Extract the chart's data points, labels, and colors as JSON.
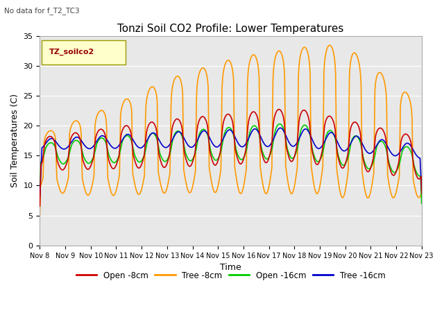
{
  "title": "Tonzi Soil CO2 Profile: Lower Temperatures",
  "subtitle": "No data for f_T2_TC3",
  "xlabel": "Time",
  "ylabel": "Soil Temperatures (C)",
  "legend_label": "TZ_soilco2",
  "series_labels": [
    "Open -8cm",
    "Tree -8cm",
    "Open -16cm",
    "Tree -16cm"
  ],
  "series_colors": [
    "#cc0000",
    "#ff9900",
    "#00cc00",
    "#0000cc"
  ],
  "ylim": [
    0,
    35
  ],
  "background_color": "#e8e8e8",
  "title_fontsize": 11,
  "axis_fontsize": 9,
  "tick_fontsize": 8,
  "figsize": [
    6.4,
    4.8
  ],
  "dpi": 100
}
